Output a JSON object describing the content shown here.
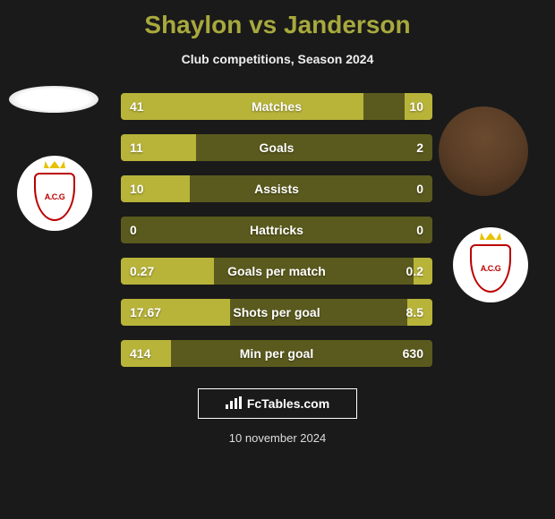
{
  "title": "Shaylon vs Janderson",
  "subtitle": "Club competitions, Season 2024",
  "colors": {
    "accent": "#a8a93d",
    "bar_fill": "#b8b43a",
    "bar_bg": "#5a5a1e",
    "page_bg": "#1a1a1a"
  },
  "players": {
    "left": {
      "name": "Shaylon",
      "club_badge_text": "A.C.G"
    },
    "right": {
      "name": "Janderson",
      "club_badge_text": "A.C.G"
    }
  },
  "stats": [
    {
      "label": "Matches",
      "left_val": "41",
      "right_val": "10",
      "left_pct": 78,
      "right_pct": 9
    },
    {
      "label": "Goals",
      "left_val": "11",
      "right_val": "2",
      "left_pct": 24,
      "right_pct": 0
    },
    {
      "label": "Assists",
      "left_val": "10",
      "right_val": "0",
      "left_pct": 22,
      "right_pct": 0
    },
    {
      "label": "Hattricks",
      "left_val": "0",
      "right_val": "0",
      "left_pct": 0,
      "right_pct": 0
    },
    {
      "label": "Goals per match",
      "left_val": "0.27",
      "right_val": "0.2",
      "left_pct": 30,
      "right_pct": 6
    },
    {
      "label": "Shots per goal",
      "left_val": "17.67",
      "right_val": "8.5",
      "left_pct": 35,
      "right_pct": 8
    },
    {
      "label": "Min per goal",
      "left_val": "414",
      "right_val": "630",
      "left_pct": 16,
      "right_pct": 0
    }
  ],
  "footer": {
    "brand": "FcTables.com",
    "date": "10 november 2024"
  }
}
